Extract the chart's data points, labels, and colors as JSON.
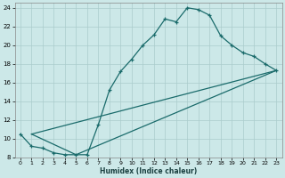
{
  "xlabel": "Humidex (Indice chaleur)",
  "bg_color": "#cce8e8",
  "grid_color": "#aacccc",
  "line_color": "#1a6b6b",
  "xlim": [
    -0.5,
    23.5
  ],
  "ylim": [
    8,
    24.5
  ],
  "xticks": [
    0,
    1,
    2,
    3,
    4,
    5,
    6,
    7,
    8,
    9,
    10,
    11,
    12,
    13,
    14,
    15,
    16,
    17,
    18,
    19,
    20,
    21,
    22,
    23
  ],
  "yticks": [
    8,
    10,
    12,
    14,
    16,
    18,
    20,
    22,
    24
  ],
  "line1_x": [
    0,
    1,
    2,
    3,
    4,
    5,
    6,
    7,
    8,
    9,
    10,
    11,
    12,
    13,
    14,
    15,
    16,
    17,
    18,
    19,
    20,
    21,
    22,
    23
  ],
  "line1_y": [
    10.5,
    9.2,
    9.0,
    8.5,
    8.3,
    8.3,
    8.3,
    11.5,
    15.2,
    17.2,
    18.5,
    20.0,
    21.1,
    22.8,
    22.5,
    24.0,
    23.8,
    23.2,
    21.0,
    20.0,
    19.2,
    18.8,
    18.0,
    17.3
  ],
  "line2_x": [
    1,
    23
  ],
  "line2_y": [
    10.5,
    17.3
  ],
  "line3_x": [
    1,
    5,
    23
  ],
  "line3_y": [
    10.5,
    8.3,
    17.3
  ]
}
